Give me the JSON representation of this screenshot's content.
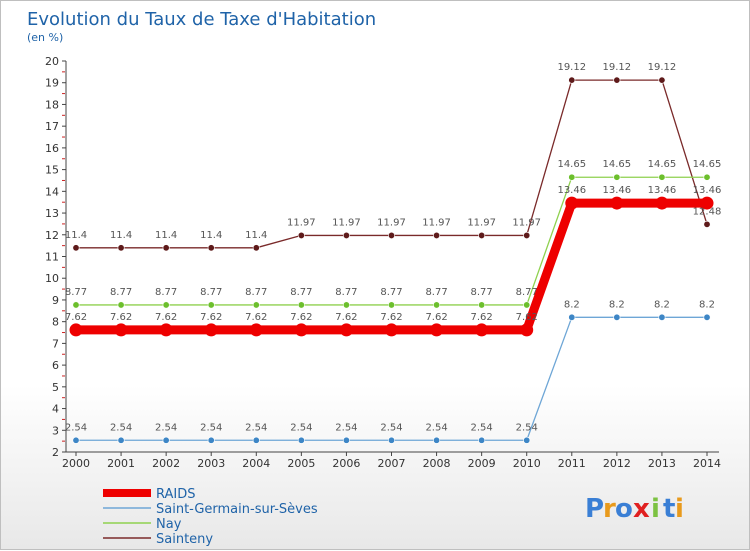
{
  "chart_data": {
    "type": "line",
    "title": "Evolution du Taux de Taxe d'Habitation",
    "ylabel": "(en %)",
    "xlabel": "",
    "ylim": [
      2,
      20
    ],
    "yticks": [
      2,
      3,
      4,
      5,
      6,
      7,
      8,
      9,
      10,
      11,
      12,
      13,
      14,
      15,
      16,
      17,
      18,
      19,
      20
    ],
    "categories": [
      "2000",
      "2001",
      "2002",
      "2003",
      "2004",
      "2005",
      "2006",
      "2007",
      "2008",
      "2009",
      "2010",
      "2011",
      "2012",
      "2013",
      "2014"
    ],
    "series": [
      {
        "name": "Sainteny",
        "color": "#7a2a2a",
        "pointColor": "#5e1a1a",
        "values": [
          11.4,
          11.4,
          11.4,
          11.4,
          11.4,
          11.97,
          11.97,
          11.97,
          11.97,
          11.97,
          11.97,
          19.12,
          19.12,
          19.12,
          12.48
        ],
        "labels": [
          "11.4",
          "11.4",
          "11.4",
          "11.4",
          "11.4",
          "11.97",
          "11.97",
          "11.97",
          "11.97",
          "11.97",
          "11.97",
          "19.12",
          "19.12",
          "19.12",
          "12.48"
        ]
      },
      {
        "name": "Nay",
        "color": "#8fd14f",
        "pointColor": "#6cbf2c",
        "values": [
          8.77,
          8.77,
          8.77,
          8.77,
          8.77,
          8.77,
          8.77,
          8.77,
          8.77,
          8.77,
          8.77,
          14.65,
          14.65,
          14.65,
          14.65
        ],
        "labels": [
          "8.77",
          "8.77",
          "8.77",
          "8.77",
          "8.77",
          "8.77",
          "8.77",
          "8.77",
          "8.77",
          "8.77",
          "8.77",
          "14.65",
          "14.65",
          "14.65",
          "14.65"
        ]
      },
      {
        "name": "RAIDS",
        "color": "#ee0000",
        "pointColor": "#ee0000",
        "values": [
          7.62,
          7.62,
          7.62,
          7.62,
          7.62,
          7.62,
          7.62,
          7.62,
          7.62,
          7.62,
          7.62,
          13.46,
          13.46,
          13.46,
          13.46
        ],
        "labels": [
          "7.62",
          "7.62",
          "7.62",
          "7.62",
          "7.62",
          "7.62",
          "7.62",
          "7.62",
          "7.62",
          "7.62",
          "7.62",
          "13.46",
          "13.46",
          "13.46",
          "13.46"
        ]
      },
      {
        "name": "Saint-Germain-sur-Sèves",
        "color": "#6ea6d6",
        "pointColor": "#3d86c6",
        "values": [
          2.54,
          2.54,
          2.54,
          2.54,
          2.54,
          2.54,
          2.54,
          2.54,
          2.54,
          2.54,
          2.54,
          8.2,
          8.2,
          8.2,
          8.2
        ],
        "labels": [
          "2.54",
          "2.54",
          "2.54",
          "2.54",
          "2.54",
          "2.54",
          "2.54",
          "2.54",
          "2.54",
          "2.54",
          "2.54",
          "8.2",
          "8.2",
          "8.2",
          "8.2"
        ]
      }
    ],
    "legend": [
      {
        "name": "RAIDS",
        "color": "#ee0000"
      },
      {
        "name": "Saint-Germain-sur-Sèves",
        "color": "#6ea6d6"
      },
      {
        "name": "Nay",
        "color": "#8fd14f"
      },
      {
        "name": "Sainteny",
        "color": "#7a2a2a"
      }
    ],
    "legend_position": "bottom-left",
    "grid": false
  },
  "branding": {
    "text": "Proxiti",
    "letters": [
      "P",
      "r",
      "o",
      "x",
      "i",
      "t",
      "i"
    ],
    "colors": [
      "#3a7fd5",
      "#e89a1c",
      "#3a7fd5",
      "#e02020",
      "#7cc242",
      "#3a7fd5",
      "#e89a1c"
    ]
  }
}
